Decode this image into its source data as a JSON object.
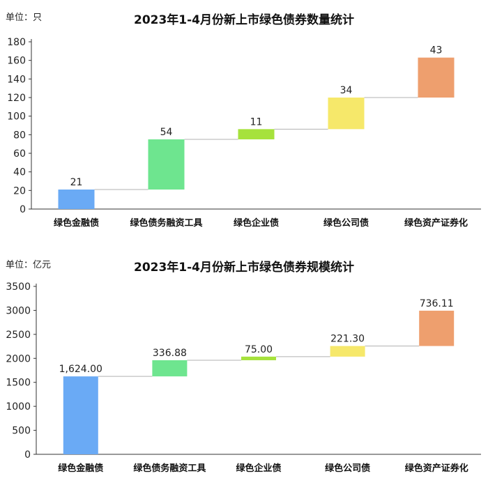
{
  "chart_data": [
    {
      "type": "waterfall",
      "title": "2023年1-4月份新上市绿色债券数量统计",
      "unit_label": "单位：只",
      "categories": [
        "绿色金融债",
        "绿色债务融资工具",
        "绿色企业债",
        "绿色公司债",
        "绿色资产证券化"
      ],
      "values": [
        21,
        54,
        11,
        34,
        43
      ],
      "value_labels": [
        "21",
        "54",
        "11",
        "34",
        "43"
      ],
      "yticks": [
        "0",
        "20",
        "40",
        "60",
        "80",
        "100",
        "120",
        "140",
        "160",
        "180"
      ],
      "ylim": [
        0,
        180
      ],
      "colors": [
        "#6aaaf5",
        "#6ee58f",
        "#a6e23c",
        "#f6e86a",
        "#ee9f6e"
      ],
      "grid": false
    },
    {
      "type": "waterfall",
      "title": "2023年1-4月份新上市绿色债券规模统计",
      "unit_label": "单位：亿元",
      "categories": [
        "绿色金融债",
        "绿色债务融资工具",
        "绿色企业债",
        "绿色公司债",
        "绿色资产证券化"
      ],
      "values": [
        1624.0,
        336.88,
        75.0,
        221.3,
        736.11
      ],
      "value_labels": [
        "1,624.00",
        "336.88",
        "75.00",
        "221.30",
        "736.11"
      ],
      "yticks": [
        "0",
        "500",
        "1000",
        "1500",
        "2000",
        "2500",
        "3000",
        "3500"
      ],
      "ylim": [
        0,
        3500
      ],
      "colors": [
        "#6aaaf5",
        "#6ee58f",
        "#a6e23c",
        "#f6e86a",
        "#ee9f6e"
      ],
      "grid": false
    }
  ]
}
